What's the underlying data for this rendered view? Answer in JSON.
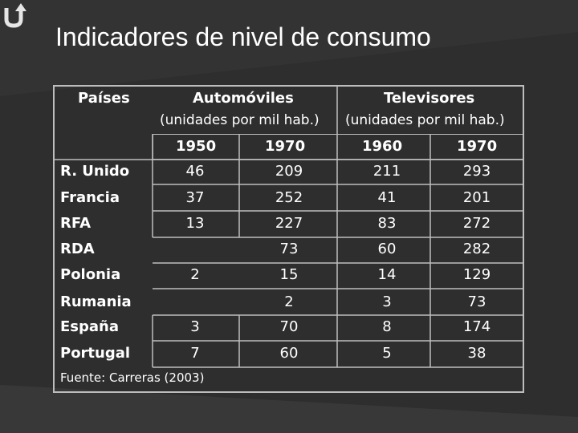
{
  "title": "Indicadores de nivel de consumo",
  "table": {
    "col_paises": "Países",
    "group_auto": "Automóviles",
    "group_auto_unit": "(unidades por mil hab.)",
    "group_tv": "Televisores",
    "group_tv_unit": "(unidades por mil hab.)",
    "years": [
      "1950",
      "1970",
      "1960",
      "1970"
    ],
    "rows": [
      {
        "country": "R. Unido",
        "a1950": "46",
        "a1970": "209",
        "t1960": "211",
        "t1970": "293"
      },
      {
        "country": "Francia",
        "a1950": "37",
        "a1970": "252",
        "t1960": "41",
        "t1970": "201"
      },
      {
        "country": "RFA",
        "a1950": "13",
        "a1970": "227",
        "t1960": "83",
        "t1970": "272"
      },
      {
        "country": "RDA",
        "a1950": "",
        "a1970": "73",
        "t1960": "60",
        "t1970": "282"
      },
      {
        "country": "Polonia",
        "a1950": "2",
        "a1970": "15",
        "t1960": "14",
        "t1970": "129"
      },
      {
        "country": "Rumania",
        "a1950": "",
        "a1970": "2",
        "t1960": "3",
        "t1970": "73"
      },
      {
        "country": "España",
        "a1950": "3",
        "a1970": "70",
        "t1960": "8",
        "t1970": "174"
      },
      {
        "country": "Portugal",
        "a1950": "7",
        "a1970": "60",
        "t1960": "5",
        "t1970": "38"
      }
    ]
  },
  "source": "Fuente: Carreras (2003)",
  "colors": {
    "background": "#2e2e2e",
    "border": "#bdbdbd",
    "text": "#ffffff"
  },
  "logo_icon": "u-turn-arrow-icon"
}
